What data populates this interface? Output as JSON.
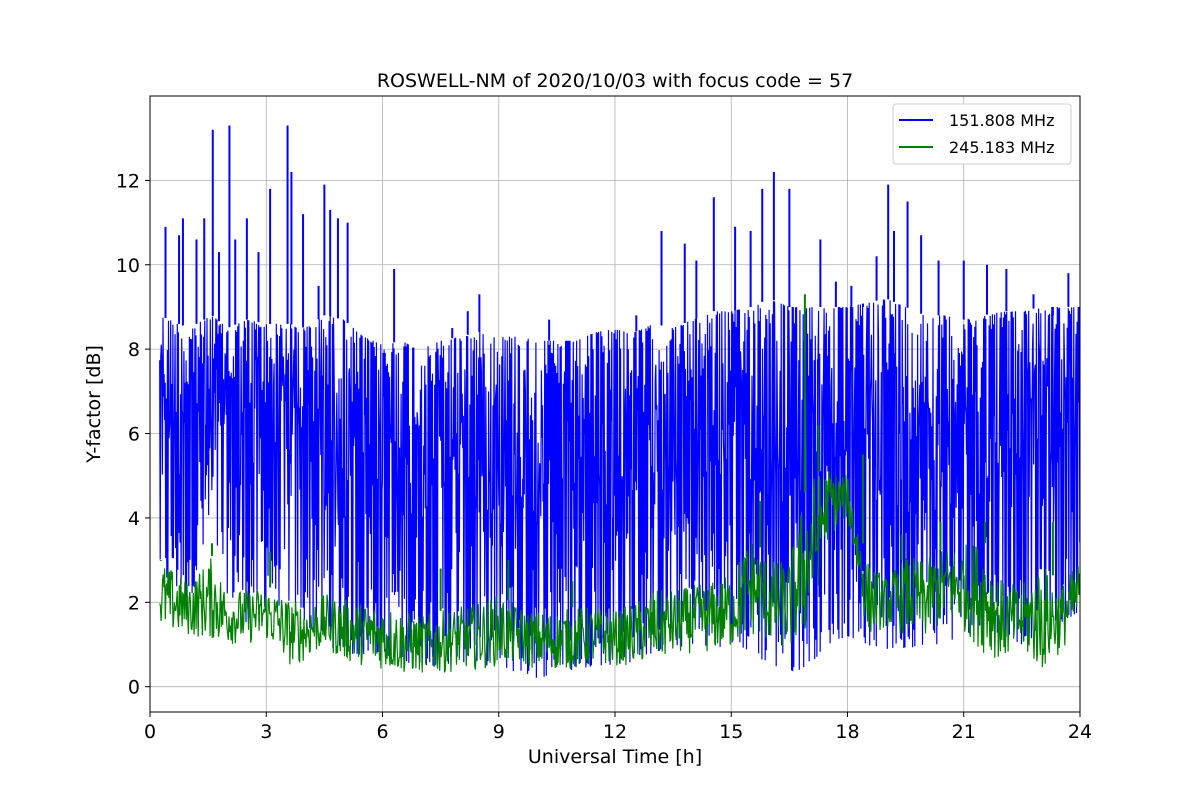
{
  "chart_data": {
    "type": "line",
    "title": "ROSWELL-NM of 2020/10/03 with focus code = 57",
    "xlabel": "Universal Time [h]",
    "ylabel": "Y-factor [dB]",
    "xlim": [
      0,
      24
    ],
    "ylim": [
      -0.6,
      14.0
    ],
    "xticks": [
      0,
      3,
      6,
      9,
      12,
      15,
      18,
      21,
      24
    ],
    "yticks": [
      0,
      2,
      4,
      6,
      8,
      10,
      12
    ],
    "grid": true,
    "legend_position": "top-right",
    "series": [
      {
        "name": "151.808 MHz",
        "color": "#0000ff",
        "x": [
          0.25,
          1.0,
          1.6,
          2.0,
          2.5,
          3.0,
          3.6,
          4.0,
          4.5,
          5.0,
          5.5,
          6.0,
          6.5,
          7.0,
          7.5,
          8.0,
          8.5,
          9.0,
          9.5,
          10.0,
          10.5,
          11.0,
          11.5,
          12.0,
          12.5,
          13.0,
          13.5,
          14.0,
          14.5,
          15.0,
          15.5,
          16.0,
          16.5,
          17.0,
          17.5,
          18.0,
          18.5,
          19.0,
          19.5,
          20.0,
          20.5,
          21.0,
          21.5,
          22.0,
          22.5,
          23.0,
          23.5,
          24.0
        ],
        "low": [
          2.5,
          2.0,
          3.5,
          2.2,
          1.5,
          1.8,
          2.0,
          1.5,
          1.0,
          0.8,
          0.7,
          0.8,
          0.6,
          0.5,
          0.5,
          0.6,
          0.5,
          0.5,
          0.3,
          0.2,
          0.3,
          0.4,
          0.5,
          0.5,
          0.6,
          0.8,
          0.9,
          1.0,
          0.9,
          1.0,
          0.8,
          0.5,
          0.3,
          0.5,
          1.0,
          1.2,
          1.0,
          0.8,
          0.9,
          1.0,
          1.0,
          1.2,
          1.5,
          1.2,
          1.0,
          1.3,
          1.5,
          1.8
        ],
        "high": [
          8.8,
          8.5,
          8.8,
          8.5,
          8.7,
          8.6,
          8.6,
          8.5,
          8.8,
          8.7,
          8.3,
          8.1,
          8.2,
          8.0,
          8.2,
          8.3,
          8.4,
          8.3,
          8.3,
          8.2,
          8.2,
          8.2,
          8.4,
          8.5,
          8.4,
          8.6,
          8.5,
          8.7,
          8.9,
          8.9,
          9.0,
          9.2,
          9.0,
          9.0,
          9.0,
          9.0,
          9.1,
          9.2,
          9.0,
          8.8,
          8.8,
          8.7,
          8.8,
          8.9,
          8.9,
          9.0,
          9.0,
          9.0
        ],
        "spikes": [
          [
            0.4,
            10.9
          ],
          [
            0.75,
            10.7
          ],
          [
            0.85,
            11.1
          ],
          [
            1.2,
            10.6
          ],
          [
            1.4,
            11.1
          ],
          [
            1.62,
            13.2
          ],
          [
            1.78,
            10.3
          ],
          [
            2.05,
            13.3
          ],
          [
            2.2,
            10.6
          ],
          [
            2.5,
            11.1
          ],
          [
            2.8,
            10.3
          ],
          [
            3.1,
            11.8
          ],
          [
            3.55,
            13.3
          ],
          [
            3.65,
            12.2
          ],
          [
            3.95,
            11.2
          ],
          [
            4.35,
            9.5
          ],
          [
            4.5,
            11.9
          ],
          [
            4.65,
            11.3
          ],
          [
            4.85,
            11.1
          ],
          [
            5.1,
            11.0
          ],
          [
            6.3,
            9.9
          ],
          [
            7.8,
            8.5
          ],
          [
            8.2,
            8.9
          ],
          [
            8.5,
            9.3
          ],
          [
            10.3,
            8.7
          ],
          [
            12.55,
            8.8
          ],
          [
            13.2,
            10.8
          ],
          [
            13.8,
            10.5
          ],
          [
            14.1,
            10.1
          ],
          [
            14.55,
            11.6
          ],
          [
            15.1,
            10.9
          ],
          [
            15.5,
            10.8
          ],
          [
            15.8,
            11.8
          ],
          [
            16.1,
            12.2
          ],
          [
            16.5,
            11.8
          ],
          [
            17.3,
            10.6
          ],
          [
            17.7,
            9.6
          ],
          [
            18.1,
            9.5
          ],
          [
            18.4,
            9.0
          ],
          [
            18.75,
            10.2
          ],
          [
            19.05,
            11.9
          ],
          [
            19.2,
            10.8
          ],
          [
            19.55,
            11.5
          ],
          [
            19.9,
            10.7
          ],
          [
            20.35,
            10.1
          ],
          [
            21.0,
            10.1
          ],
          [
            21.6,
            10.0
          ],
          [
            22.1,
            9.9
          ],
          [
            22.8,
            9.3
          ],
          [
            23.3,
            8.8
          ],
          [
            23.7,
            9.8
          ]
        ]
      },
      {
        "name": "245.183 MHz",
        "color": "#008000",
        "x": [
          0.25,
          1.0,
          1.6,
          2.0,
          2.5,
          3.0,
          3.6,
          4.0,
          4.5,
          5.0,
          5.5,
          6.0,
          6.5,
          7.0,
          7.5,
          8.0,
          8.5,
          9.0,
          9.5,
          10.0,
          10.5,
          11.0,
          11.5,
          12.0,
          12.5,
          13.0,
          13.5,
          14.0,
          14.5,
          15.0,
          15.5,
          16.0,
          16.5,
          17.0,
          17.5,
          18.0,
          18.5,
          19.0,
          19.5,
          20.0,
          20.5,
          21.0,
          21.5,
          22.0,
          22.5,
          23.0,
          23.5,
          24.0
        ],
        "low": [
          1.3,
          1.2,
          1.1,
          1.0,
          1.0,
          1.1,
          0.5,
          0.6,
          0.9,
          0.6,
          0.5,
          0.4,
          0.3,
          0.3,
          0.3,
          0.4,
          0.4,
          0.5,
          0.5,
          0.4,
          0.4,
          0.4,
          0.5,
          0.5,
          0.5,
          0.6,
          0.7,
          0.8,
          0.8,
          0.9,
          1.2,
          1.0,
          0.8,
          1.2,
          3.5,
          4.0,
          1.2,
          1.4,
          1.2,
          1.1,
          1.5,
          1.3,
          0.8,
          0.6,
          0.8,
          0.3,
          0.8,
          1.5
        ],
        "high": [
          3.0,
          2.5,
          3.1,
          2.3,
          2.3,
          2.4,
          2.1,
          2.0,
          2.2,
          2.1,
          2.0,
          2.0,
          1.8,
          1.7,
          1.8,
          1.9,
          2.0,
          2.2,
          1.9,
          1.8,
          1.8,
          1.9,
          1.9,
          1.8,
          2.0,
          2.3,
          2.3,
          2.4,
          2.5,
          2.7,
          3.6,
          3.0,
          3.0,
          5.0,
          5.2,
          5.0,
          3.0,
          2.6,
          3.1,
          3.0,
          3.3,
          3.4,
          3.5,
          2.5,
          2.4,
          3.0,
          2.4,
          3.0
        ],
        "spikes": [
          [
            0.28,
            3.0
          ],
          [
            1.6,
            3.4
          ],
          [
            3.1,
            3.2
          ],
          [
            7.5,
            2.8
          ],
          [
            9.25,
            3.0
          ],
          [
            10.9,
            2.5
          ],
          [
            15.75,
            4.4
          ],
          [
            16.9,
            9.3
          ],
          [
            17.25,
            6.2
          ],
          [
            18.4,
            5.5
          ],
          [
            19.4,
            3.6
          ],
          [
            20.4,
            3.9
          ],
          [
            21.55,
            3.9
          ],
          [
            23.3,
            3.9
          ]
        ]
      }
    ]
  }
}
